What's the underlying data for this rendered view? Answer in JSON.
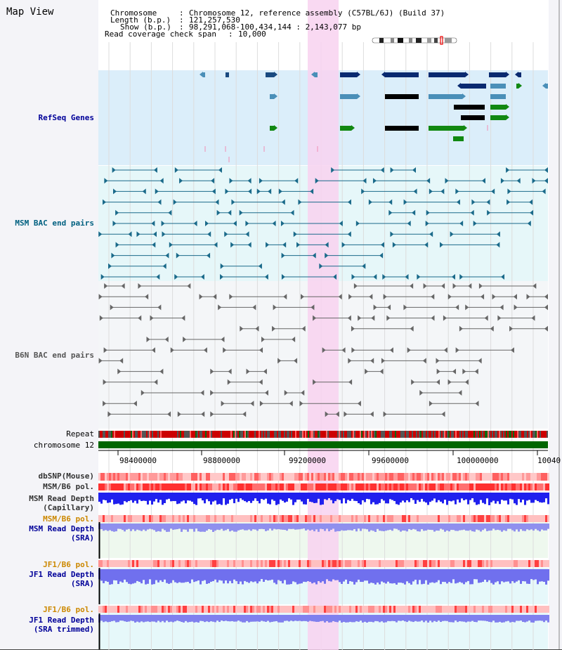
{
  "view": {
    "title": "Map View"
  },
  "info": {
    "chromosome_label": "Chromosome",
    "chromosome_value": "Chromosome 12, reference assembly (C57BL/6J) (Build 37)",
    "length_label": "Length (b.p.)",
    "length_value": "121,257,530",
    "show_label": "Show (b.p.)",
    "show_value": "98,291,068-100,434,144 : 2,143,077 bp",
    "coverage_label": "Read coverage check span",
    "coverage_value": "10,000"
  },
  "tracks": {
    "refseq": "RefSeq Genes",
    "msm_bac": "MSM BAC end pairs",
    "b6n_bac": "B6N BAC end pairs",
    "repeat": "Repeat",
    "chromosome": "chromosome 12",
    "dbsnp": "dbSNP(Mouse)",
    "msm_b6_pol_1": "MSM/B6 pol.",
    "msm_depth_cap_1": "MSM Read Depth",
    "msm_depth_cap_2": "(Capillary)",
    "msm_b6_pol_2": "MSM/B6 pol.",
    "msm_depth_sra_1": "MSM Read Depth",
    "msm_depth_sra_2": "(SRA)",
    "jf1_b6_pol_1": "JF1/B6 pol.",
    "jf1_depth_sra_1": "JF1 Read Depth",
    "jf1_depth_sra_2": "(SRA)",
    "jf1_b6_pol_2": "JF1/B6 pol.",
    "jf1_depth_trim_1": "JF1 Read Depth",
    "jf1_depth_trim_2": "(SRA trimmed)"
  },
  "axis": {
    "ticks": [
      "98400000",
      "98800000",
      "99200000",
      "99600000",
      "100000000",
      "10040"
    ]
  },
  "colors": {
    "refseq_label": "#000099",
    "msm_label": "#006080",
    "b6n_label": "#555555",
    "orange_label": "#cc8800",
    "highlight": "#f8d8f0",
    "chromosome_bar": "#006600"
  }
}
